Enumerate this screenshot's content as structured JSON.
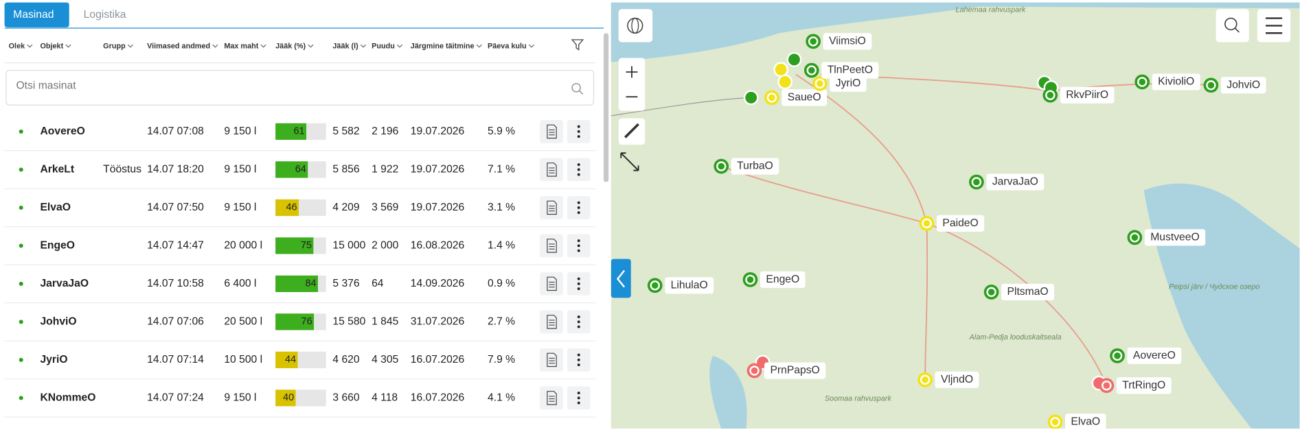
{
  "tabs": [
    "Masinad",
    "Logistika"
  ],
  "table": {
    "headers": [
      "Olek",
      "Objekt",
      "Grupp",
      "Viimased andmed",
      "Max maht",
      "Jääk (%)",
      "Jääk (l)",
      "Puudu",
      "Järgmine täitmine",
      "Päeva kulu"
    ],
    "search_placeholder": "Otsi masinat",
    "rows": [
      {
        "name": "AovereO",
        "last": "14.07 07:08",
        "max": "9 150 l",
        "pct": 61,
        "left": "5 582",
        "missing": "2 196",
        "next": "19.07.2026",
        "daily": "5.9 %"
      },
      {
        "name": "ArkeLt",
        "group": "Tööstus",
        "last": "14.07 18:20",
        "max": "9 150 l",
        "pct": 64,
        "left": "5 856",
        "missing": "1 922",
        "next": "19.07.2026",
        "daily": "7.1 %"
      },
      {
        "name": "ElvaO",
        "last": "14.07 07:50",
        "max": "9 150 l",
        "pct": 46,
        "left": "4 209",
        "missing": "3 569",
        "next": "19.07.2026",
        "daily": "3.1 %"
      },
      {
        "name": "EngeO",
        "last": "14.07 14:47",
        "max": "20 000 l",
        "pct": 75,
        "left": "15 000",
        "missing": "2 000",
        "next": "16.08.2026",
        "daily": "1.4 %"
      },
      {
        "name": "JarvaJaO",
        "last": "14.07 10:58",
        "max": "6 400 l",
        "pct": 84,
        "left": "5 376",
        "missing": "64",
        "next": "14.09.2026",
        "daily": "0.9 %"
      },
      {
        "name": "JohviO",
        "last": "14.07 07:06",
        "max": "20 500 l",
        "pct": 76,
        "left": "15 580",
        "missing": "1 845",
        "next": "31.07.2026",
        "daily": "2.7 %"
      },
      {
        "name": "JyriO",
        "last": "14.07 07:14",
        "max": "10 500 l",
        "pct": 44,
        "left": "4 620",
        "missing": "4 305",
        "next": "16.07.2026",
        "daily": "7.9 %"
      },
      {
        "name": "KNommeO",
        "last": "14.07 07:24",
        "max": "9 150 l",
        "pct": 40,
        "left": "3 660",
        "missing": "4 118",
        "next": "16.07.2026",
        "daily": "4.1 %"
      }
    ]
  },
  "map": {
    "areas": [
      "Lahemaa rahvuspark",
      "Soomaa rahvuspark",
      "Alam-Pedja looduskaitseala",
      "Peipsi järv / Чудское озеро"
    ],
    "markers": [
      {
        "label": "ViimsiO",
        "color": "#2e9e1f"
      },
      {
        "label": "TurbaO",
        "color": "#2e9e1f"
      },
      {
        "label": "SaueO",
        "color": "#f2e21a"
      },
      {
        "label": "JyriO",
        "color": "#f2e21a"
      },
      {
        "label": "TlnPeetO",
        "color": "#2e9e1f"
      },
      {
        "label": "RkvPiirO",
        "color": "#2e9e1f"
      },
      {
        "label": "KivioliO",
        "color": "#2e9e1f"
      },
      {
        "label": "JohviO",
        "color": "#2e9e1f"
      },
      {
        "label": "JarvaJaO",
        "color": "#2e9e1f"
      },
      {
        "label": "PaideO",
        "color": "#f2e21a"
      },
      {
        "label": "MustveeO",
        "color": "#2e9e1f"
      },
      {
        "label": "EngeO",
        "color": "#2e9e1f"
      },
      {
        "label": "LihulaO",
        "color": "#2e9e1f"
      },
      {
        "label": "PltsmaO",
        "color": "#2e9e1f"
      },
      {
        "label": "AovereO",
        "color": "#2e9e1f"
      },
      {
        "label": "PrnPapsO",
        "color": "#f06b6b"
      },
      {
        "label": "VljndO",
        "color": "#f2e21a"
      },
      {
        "label": "TrtRingO",
        "color": "#f06b6b"
      },
      {
        "label": "ElvaO",
        "color": "#f2e21a"
      }
    ]
  }
}
